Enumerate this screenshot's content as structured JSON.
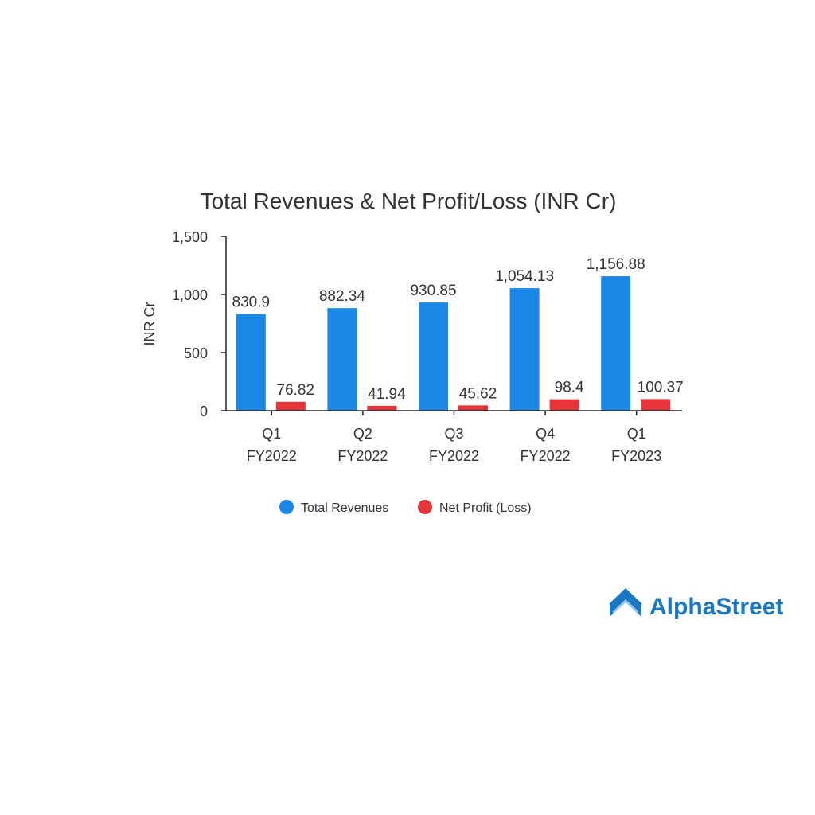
{
  "chart_data": {
    "type": "bar",
    "title": "Total Revenues & Net Profit/Loss (INR Cr)",
    "xlabel": "",
    "ylabel": "INR Cr",
    "ylim": [
      0,
      1500
    ],
    "yticks": [
      0,
      500,
      1000,
      1500
    ],
    "ytick_labels": [
      "0",
      "500",
      "1,000",
      "1,500"
    ],
    "categories": [
      [
        "Q1",
        "FY2022"
      ],
      [
        "Q2",
        "FY2022"
      ],
      [
        "Q3",
        "FY2022"
      ],
      [
        "Q4",
        "FY2022"
      ],
      [
        "Q1",
        "FY2023"
      ]
    ],
    "series": [
      {
        "name": "Total Revenues",
        "color": "#1a88e6",
        "values": [
          830.9,
          882.34,
          930.85,
          1054.13,
          1156.88
        ],
        "labels": [
          "830.9",
          "882.34",
          "930.85",
          "1,054.13",
          "1,156.88"
        ]
      },
      {
        "name": "Net Profit (Loss)",
        "color": "#e8353a",
        "values": [
          76.82,
          41.94,
          45.62,
          98.4,
          100.37
        ],
        "labels": [
          "76.82",
          "41.94",
          "45.62",
          "98.4",
          "100.37"
        ]
      }
    ],
    "grid": false,
    "legend_position": "bottom"
  },
  "brand": {
    "name": "AlphaStreet",
    "color": "#1a78c2",
    "icon": "alphastreet-logo-icon"
  }
}
